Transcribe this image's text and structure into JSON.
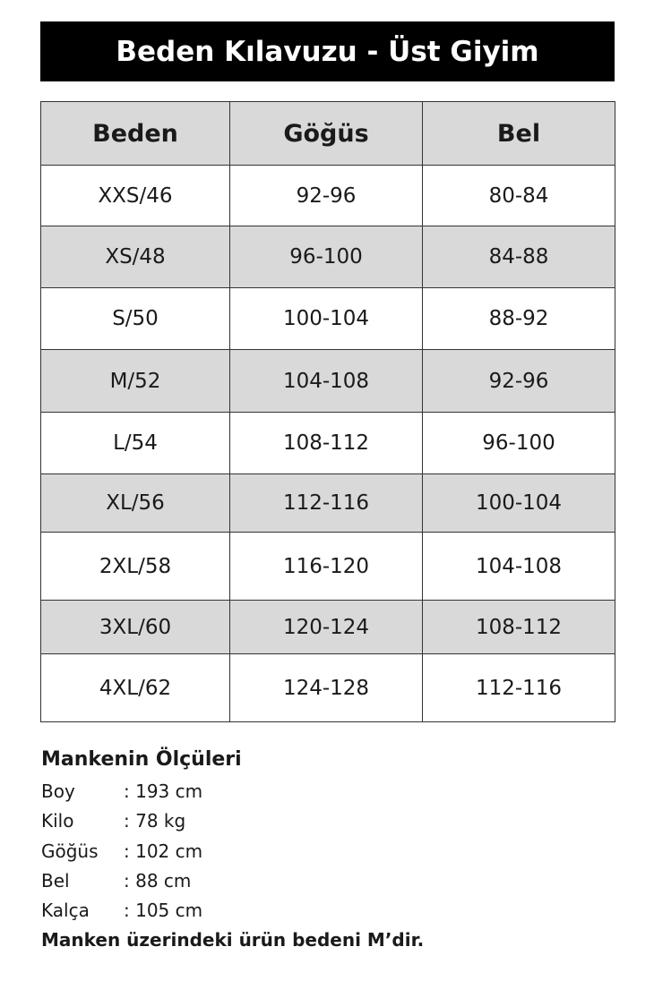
{
  "title": "Beden Kılavuzu - Üst Giyim",
  "table": {
    "headers": [
      "Beden",
      "Göğüs",
      "Bel"
    ],
    "rows": [
      [
        "XXS/46",
        "92-96",
        "80-84"
      ],
      [
        "XS/48",
        "96-100",
        "84-88"
      ],
      [
        "S/50",
        "100-104",
        "88-92"
      ],
      [
        "M/52",
        "104-108",
        "92-96"
      ],
      [
        "L/54",
        "108-112",
        "96-100"
      ],
      [
        "XL/56",
        "112-116",
        "100-104"
      ],
      [
        "2XL/58",
        "116-120",
        "104-108"
      ],
      [
        "3XL/60",
        "120-124",
        "108-112"
      ],
      [
        "4XL/62",
        "124-128",
        "112-116"
      ]
    ]
  },
  "model": {
    "heading": "Mankenin Ölçüleri",
    "items": [
      {
        "label": "Boy",
        "value": ": 193 cm"
      },
      {
        "label": "Kilo",
        "value": ": 78 kg"
      },
      {
        "label": "Göğüs",
        "value": ": 102 cm"
      },
      {
        "label": "Bel",
        "value": ": 88 cm"
      },
      {
        "label": "Kalça",
        "value": ": 105 cm"
      }
    ],
    "note": "Manken üzerindeki ürün bedeni  M’dir."
  },
  "colors": {
    "title_bg": "#000000",
    "shaded_row": "#d9d9d9"
  }
}
